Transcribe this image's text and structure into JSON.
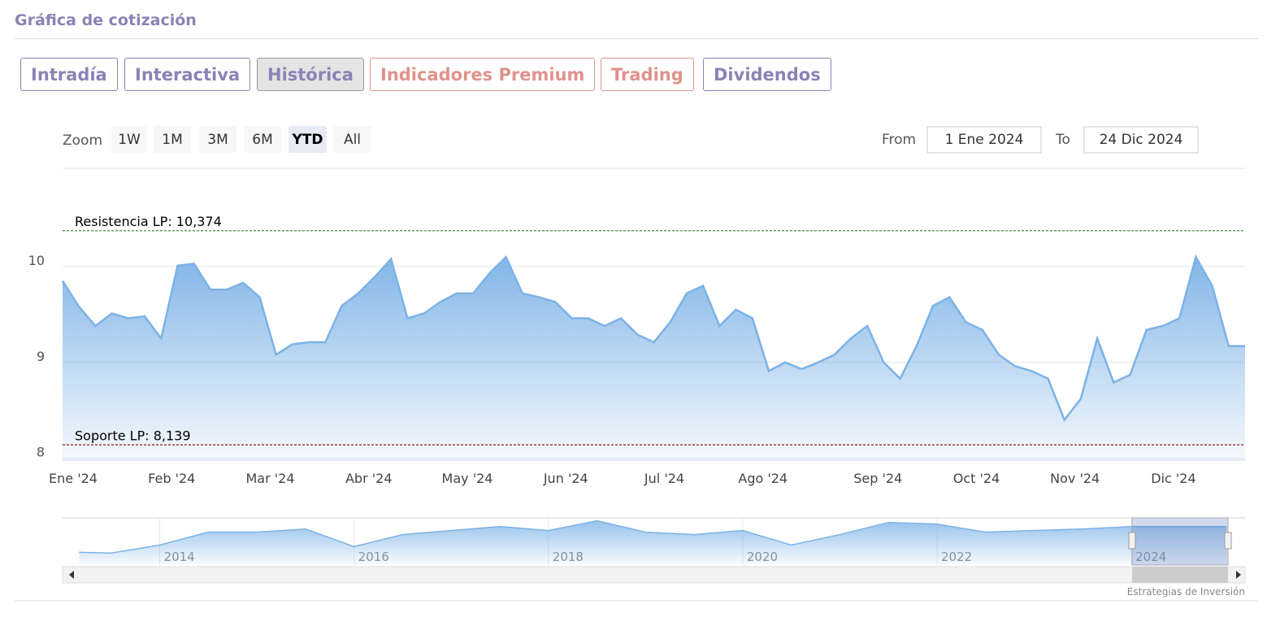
{
  "header": {
    "title": "Gráfica de cotización"
  },
  "tabs": [
    {
      "label": "Intradía",
      "color": "#8a83b5"
    },
    {
      "label": "Interactiva",
      "color": "#8a83b5"
    },
    {
      "label": "Histórica",
      "color": "#8a83b5",
      "active": true
    },
    {
      "label": "Indicadores Premium",
      "color": "#e0928d"
    },
    {
      "label": "Trading",
      "color": "#e0928d"
    },
    {
      "label": "Dividendos",
      "color": "#8a83b5"
    }
  ],
  "zoom": {
    "label": "Zoom",
    "buttons": [
      "1W",
      "1M",
      "3M",
      "6M",
      "YTD",
      "All"
    ],
    "selected": 4
  },
  "range": {
    "from_label": "From",
    "from": "1 Ene 2024",
    "to_label": "To",
    "to": "24 Dic 2024"
  },
  "chart_data": {
    "type": "area",
    "color": "#7cb2e6",
    "categories": [
      "Ene '24",
      null,
      null,
      null,
      null,
      null,
      "Feb '24",
      null,
      null,
      null,
      null,
      null,
      "Mar '24",
      null,
      null,
      null,
      null,
      null,
      "Abr '24",
      null,
      null,
      null,
      null,
      null,
      "May '24",
      null,
      null,
      null,
      null,
      null,
      "Jun '24",
      null,
      null,
      null,
      null,
      null,
      "Jul '24",
      null,
      null,
      null,
      null,
      null,
      "Ago '24",
      null,
      null,
      null,
      null,
      null,
      null,
      "Sep '24",
      null,
      null,
      null,
      null,
      null,
      "Oct '24",
      null,
      null,
      null,
      null,
      null,
      "Nov '24",
      null,
      null,
      null,
      null,
      null,
      "Dic '24",
      null,
      null,
      null,
      null,
      null
    ],
    "values": [
      9.85,
      9.58,
      9.38,
      9.51,
      9.46,
      9.48,
      9.25,
      10.01,
      10.03,
      9.76,
      9.76,
      9.83,
      9.68,
      9.08,
      9.19,
      9.21,
      9.21,
      9.59,
      9.72,
      9.89,
      10.08,
      9.46,
      9.51,
      9.63,
      9.72,
      9.72,
      9.93,
      10.1,
      9.72,
      9.68,
      9.63,
      9.46,
      9.46,
      9.38,
      9.46,
      9.29,
      9.21,
      9.42,
      9.72,
      9.8,
      9.38,
      9.55,
      9.46,
      8.91,
      9.0,
      8.93,
      9.0,
      9.08,
      9.25,
      9.38,
      9.0,
      8.83,
      9.17,
      9.59,
      9.68,
      9.42,
      9.34,
      9.08,
      8.96,
      8.91,
      8.83,
      8.4,
      8.62,
      9.25,
      8.79,
      8.87,
      9.34,
      9.38,
      9.46,
      10.1,
      9.8,
      9.17,
      9.17
    ],
    "ylim": [
      7.98,
      11.0
    ],
    "yticks": [
      8,
      9,
      10
    ],
    "grid": true,
    "plot_lines": [
      {
        "value": 10.374,
        "label": "Resistencia LP: 10,374",
        "color": "#2e7d32"
      },
      {
        "value": 8.139,
        "label": "Soporte LP: 8,139",
        "color": "#8b1a1a"
      }
    ]
  },
  "navigator": {
    "type": "area",
    "color": "#7cb2e6",
    "x": [
      2013.17,
      2013.5,
      2014,
      2014.5,
      2015,
      2015.5,
      2016,
      2016.5,
      2017,
      2017.5,
      2018,
      2018.5,
      2019,
      2019.5,
      2020,
      2020.5,
      2021,
      2021.5,
      2022,
      2022.5,
      2023,
      2023.5,
      2024,
      2024.5,
      2024.98
    ],
    "values": [
      5.34,
      5.21,
      6.51,
      8.59,
      8.59,
      9.11,
      6.25,
      8.2,
      8.85,
      9.5,
      8.85,
      10.41,
      8.59,
      8.2,
      8.85,
      6.51,
      8.2,
      10.15,
      9.89,
      8.59,
      8.85,
      9.11,
      9.5,
      9.5,
      9.5
    ],
    "xlim": [
      2013,
      2025.17
    ],
    "xticks": [
      2014,
      2016,
      2018,
      2020,
      2022,
      2024
    ],
    "ylim": [
      3.3,
      10.9
    ]
  },
  "credits": "Estrategias de Inversión"
}
